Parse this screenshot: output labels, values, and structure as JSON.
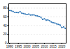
{
  "chart_data": {
    "type": "line",
    "x": [
      1990,
      1991,
      1992,
      1993,
      1994,
      1995,
      1996,
      1997,
      1998,
      1999,
      2000,
      2001,
      2002,
      2003,
      2004,
      2005,
      2006,
      2007,
      2008,
      2009,
      2010,
      2011,
      2012,
      2013,
      2014,
      2015,
      2016,
      2017,
      2018,
      2019,
      2020,
      2021,
      2022
    ],
    "values": [
      74.8,
      74.0,
      72.4,
      70.4,
      70.4,
      69.7,
      72.1,
      68.6,
      67.7,
      66.5,
      65.4,
      66.6,
      64.3,
      64.6,
      64.6,
      62.8,
      62.3,
      60.7,
      59.4,
      54.1,
      55.7,
      52.5,
      53.2,
      51.1,
      48.4,
      46.8,
      46.0,
      44.1,
      42.9,
      41.5,
      35.3,
      37.2,
      33.8
    ],
    "color": "#2e75b6",
    "marker": "square",
    "xlim": [
      1989.5,
      2022.5
    ],
    "xticks": [
      1990,
      1995,
      2000,
      2005,
      2010,
      2015,
      2020
    ],
    "ylim": [
      0,
      90
    ],
    "yticks": [
      0,
      20,
      40,
      60,
      80
    ],
    "grid": true
  }
}
